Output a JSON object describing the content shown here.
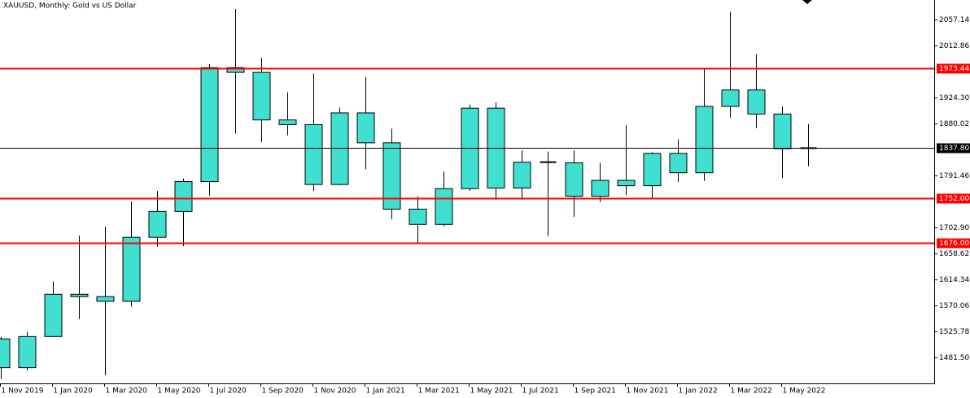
{
  "chart_data": {
    "type": "candlestick",
    "title": "XAUUSD, Monthly:  Gold vs US Dollar",
    "categories": [
      "1 Nov 2019",
      null,
      "1 Jan 2020",
      null,
      "1 Mar 2020",
      null,
      "1 May 2020",
      null,
      "1 Jul 2020",
      null,
      "1 Sep 2020",
      null,
      "1 Nov 2020",
      null,
      "1 Jan 2021",
      null,
      "1 Mar 2021",
      null,
      "1 May 2021",
      null,
      "1 Jul 2021",
      null,
      "1 Sep 2021",
      null,
      "1 Nov 2021",
      null,
      "1 Jan 2022",
      null,
      "1 Mar 2022",
      null,
      "1 May 2022",
      null
    ],
    "open": [
      1513,
      1464,
      1517,
      1589,
      1585,
      1577,
      1686,
      1730,
      1781,
      1975,
      1967,
      1886,
      1878,
      1776,
      1898,
      1847,
      1734,
      1708,
      1769,
      1906,
      1770,
      1814,
      1813,
      1756,
      1783,
      1774,
      1829,
      1796,
      1909,
      1937,
      1896,
      1837
    ],
    "high": [
      1516,
      1525,
      1611,
      1689,
      1704,
      1747,
      1765,
      1786,
      1981,
      2075,
      1992,
      1933,
      1965,
      1907,
      1959,
      1871,
      1756,
      1798,
      1912,
      1916,
      1834,
      1832,
      1834,
      1813,
      1877,
      1831,
      1853,
      1974,
      2070,
      1998,
      1909,
      1879
    ],
    "low": [
      1445,
      1459,
      1517,
      1547,
      1451,
      1568,
      1670,
      1671,
      1757,
      1863,
      1848,
      1860,
      1765,
      1775,
      1802,
      1717,
      1677,
      1705,
      1765,
      1750,
      1750,
      1688,
      1721,
      1746,
      1758,
      1753,
      1780,
      1782,
      1890,
      1872,
      1787,
      1807
    ],
    "close": [
      1464,
      1517,
      1589,
      1585,
      1577,
      1686,
      1730,
      1781,
      1975,
      1967,
      1886,
      1878,
      1776,
      1898,
      1847,
      1734,
      1708,
      1769,
      1906,
      1770,
      1814,
      1813,
      1756,
      1783,
      1774,
      1829,
      1796,
      1909,
      1937,
      1896,
      1837,
      1838
    ],
    "color": "#40e0d0",
    "ylim": [
      1437.2,
      2090.3
    ],
    "yticks": [
      2057.14,
      2012.86,
      {
        "value": 1924.3,
        "label": "1924.30"
      },
      1880.02,
      1791.46,
      {
        "value": 1702.9,
        "label": "1702.90"
      },
      1658.62,
      1614.34,
      1570.06,
      1525.78,
      {
        "value": 1481.5,
        "label": "1481.50"
      }
    ],
    "levels": [
      {
        "value": 1973.44,
        "color": "#ff0000"
      },
      {
        "value": 1752,
        "label": "1752.00",
        "color": "#ff0000"
      },
      {
        "value": 1676,
        "label": "1676.00",
        "color": "#ff0000"
      }
    ],
    "current_price": {
      "value": 1837.8,
      "label": "1837.80",
      "color": "#000000"
    }
  }
}
